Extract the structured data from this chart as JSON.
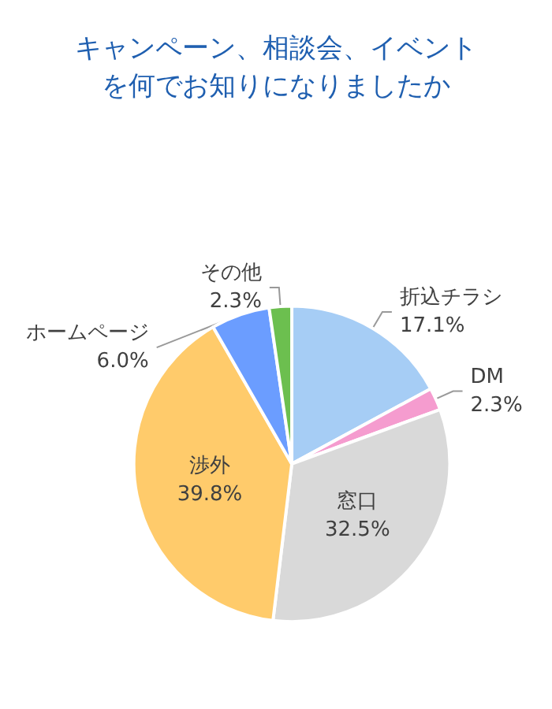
{
  "chart_data": {
    "type": "pie",
    "title": "キャンペーン、相談会、イベントを何でお知りになりましたか",
    "categories": [
      "折込チラシ",
      "DM",
      "窓口",
      "渉外",
      "ホームページ",
      "その他"
    ],
    "values": [
      17.1,
      2.3,
      32.5,
      39.8,
      6.0,
      2.3
    ],
    "value_labels": [
      "17.1%",
      "2.3%",
      "32.5%",
      "39.8%",
      "6.0%",
      "2.3%"
    ],
    "colors": [
      "#a6cdf5",
      "#f59ccf",
      "#d9d9d9",
      "#ffcb6b",
      "#6b9dff",
      "#6cbf4f"
    ],
    "legend": false
  }
}
